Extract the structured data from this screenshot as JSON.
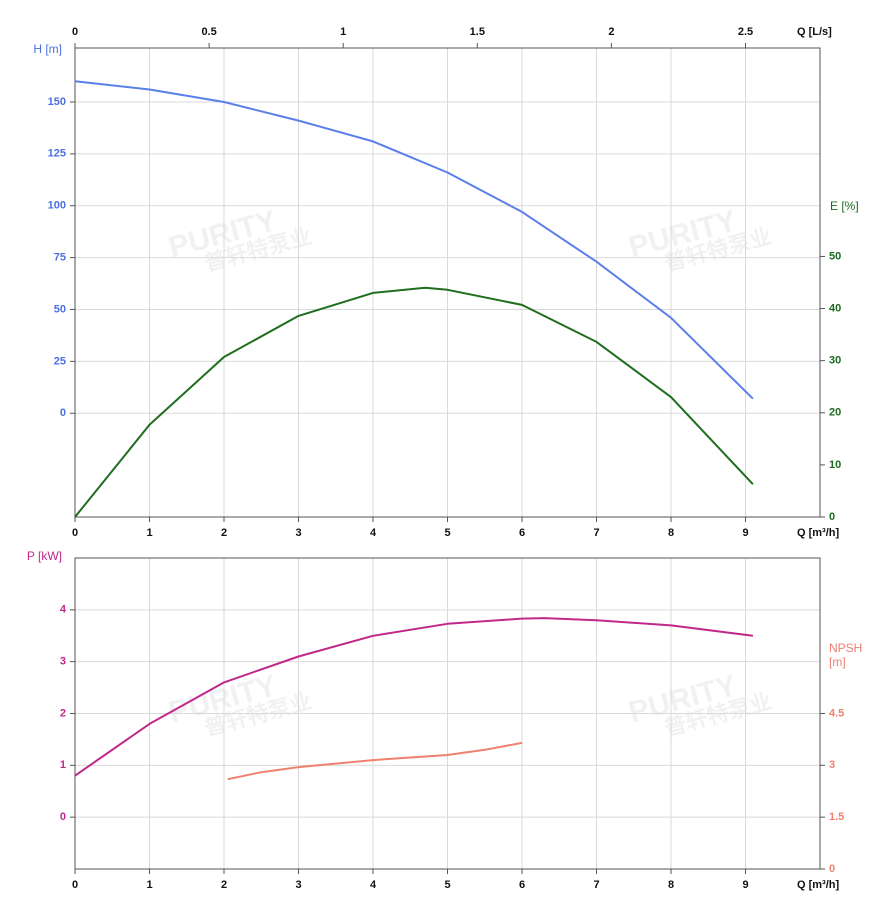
{
  "watermark": {
    "en": "PURITY",
    "cn": "普轩特泵业"
  },
  "chart_data": [
    {
      "type": "line",
      "xlabel": "Q [m³/h]",
      "xlim": [
        0,
        10
      ],
      "xticks": [
        0,
        1,
        2,
        3,
        4,
        5,
        6,
        7,
        8,
        9
      ],
      "x2label": "Q [L/s]",
      "x2lim": [
        0,
        2.7778
      ],
      "x2ticks": [
        0,
        0.5,
        1,
        1.5,
        2,
        2.5
      ],
      "ylabel": "H [m]",
      "ycolor": "#4a6fe3",
      "ylim": [
        -50,
        176
      ],
      "yticks": [
        0,
        25,
        50,
        75,
        100,
        125,
        150
      ],
      "y2label": "E [%]",
      "y2color": "#1d6b1d",
      "y2lim": [
        0,
        90
      ],
      "y2ticks": [
        0,
        10,
        20,
        30,
        40,
        50
      ],
      "grid": true,
      "series": [
        {
          "color": "#5b7fe8",
          "x": [
            0,
            1,
            2,
            3,
            4,
            5,
            6,
            7,
            8,
            9.1
          ],
          "values": [
            160,
            156,
            150,
            141,
            131,
            116,
            97,
            73,
            46,
            7
          ]
        },
        {
          "color": "#1e6e1e",
          "axis": "y2",
          "x": [
            0,
            1,
            2,
            3,
            4,
            4.7,
            5,
            6,
            7,
            8,
            9.1
          ],
          "values": [
            0,
            17.7,
            30.7,
            38.6,
            43,
            44,
            43.6,
            40.7,
            33.6,
            23,
            6.3
          ]
        }
      ]
    },
    {
      "type": "line",
      "xlabel": "Q [m³/h]",
      "xlim": [
        0,
        10
      ],
      "xticks": [
        0,
        1,
        2,
        3,
        4,
        5,
        6,
        7,
        8,
        9
      ],
      "ylabel": "P [kW]",
      "ycolor": "#c0288a",
      "ylim": [
        -1,
        5
      ],
      "yticks": [
        0,
        1,
        2,
        3,
        4
      ],
      "y2label": "NPSH [m]",
      "y2color": "#f08070",
      "y2lim": [
        0,
        9
      ],
      "y2ticks": [
        0,
        1.5,
        3,
        4.5
      ],
      "grid": true,
      "series": [
        {
          "color": "#c0288a",
          "x": [
            0,
            1,
            2,
            3,
            4,
            5,
            6,
            6.3,
            7,
            8,
            9.1
          ],
          "values": [
            0.8,
            1.8,
            2.6,
            3.1,
            3.5,
            3.73,
            3.83,
            3.84,
            3.8,
            3.7,
            3.5
          ]
        },
        {
          "color": "#f08070",
          "axis": "y2",
          "x": [
            2.05,
            2.5,
            3,
            4,
            5,
            5.5,
            6
          ],
          "values": [
            2.6,
            2.8,
            2.95,
            3.15,
            3.3,
            3.45,
            3.65
          ]
        }
      ]
    }
  ]
}
